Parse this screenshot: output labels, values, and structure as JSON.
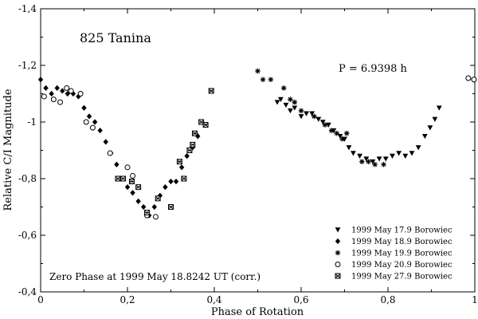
{
  "chart_data": {
    "type": "scatter",
    "object_name": "825 Tanina",
    "period_label": "P = 6.9398 h",
    "zero_phase_note": "Zero Phase at 1999 May 18.8242 UT (corr.)",
    "xlabel": "Phase of Rotation",
    "ylabel": "Relative C/I Magnitude",
    "xlim": [
      0,
      1
    ],
    "ylim": [
      -1.4,
      -0.4
    ],
    "y_inverted": true,
    "x_ticks": [
      {
        "value": 0,
        "label": "0"
      },
      {
        "value": 0.2,
        "label": "0,2"
      },
      {
        "value": 0.4,
        "label": "0,4"
      },
      {
        "value": 0.6,
        "label": "0,6"
      },
      {
        "value": 0.8,
        "label": "0,8"
      },
      {
        "value": 1.0,
        "label": "1"
      }
    ],
    "y_ticks": [
      {
        "value": -1.4,
        "label": "-1,4"
      },
      {
        "value": -1.2,
        "label": "-1,2"
      },
      {
        "value": -1.0,
        "label": "-1"
      },
      {
        "value": -0.8,
        "label": "-0,8"
      },
      {
        "value": -0.6,
        "label": "-0,6"
      },
      {
        "value": -0.4,
        "label": "-0,4"
      }
    ],
    "legend_position": "bottom-right",
    "series": [
      {
        "name": "1999 May 17.9 Borowiec",
        "marker": "triangle-down",
        "points": [
          [
            0.545,
            -1.07
          ],
          [
            0.553,
            -1.08
          ],
          [
            0.565,
            -1.06
          ],
          [
            0.575,
            -1.04
          ],
          [
            0.585,
            -1.05
          ],
          [
            0.6,
            -1.02
          ],
          [
            0.612,
            -1.03
          ],
          [
            0.625,
            -1.03
          ],
          [
            0.64,
            -1.01
          ],
          [
            0.65,
            -1.0
          ],
          [
            0.663,
            -0.99
          ],
          [
            0.675,
            -0.97
          ],
          [
            0.69,
            -0.95
          ],
          [
            0.7,
            -0.94
          ],
          [
            0.71,
            -0.91
          ],
          [
            0.72,
            -0.89
          ],
          [
            0.735,
            -0.88
          ],
          [
            0.75,
            -0.87
          ],
          [
            0.765,
            -0.86
          ],
          [
            0.78,
            -0.87
          ],
          [
            0.795,
            -0.87
          ],
          [
            0.81,
            -0.88
          ],
          [
            0.825,
            -0.89
          ],
          [
            0.84,
            -0.88
          ],
          [
            0.855,
            -0.89
          ],
          [
            0.87,
            -0.91
          ],
          [
            0.885,
            -0.95
          ],
          [
            0.897,
            -0.98
          ],
          [
            0.908,
            -1.01
          ],
          [
            0.918,
            -1.05
          ]
        ]
      },
      {
        "name": "1999 May 18.9 Borowiec",
        "marker": "diamond",
        "points": [
          [
            0.0,
            -1.15
          ],
          [
            0.012,
            -1.12
          ],
          [
            0.025,
            -1.1
          ],
          [
            0.038,
            -1.12
          ],
          [
            0.05,
            -1.11
          ],
          [
            0.062,
            -1.1
          ],
          [
            0.075,
            -1.1
          ],
          [
            0.087,
            -1.09
          ],
          [
            0.1,
            -1.05
          ],
          [
            0.112,
            -1.02
          ],
          [
            0.125,
            -1.0
          ],
          [
            0.137,
            -0.97
          ],
          [
            0.15,
            -0.93
          ],
          [
            0.162,
            -0.89
          ],
          [
            0.175,
            -0.85
          ],
          [
            0.187,
            -0.8
          ],
          [
            0.2,
            -0.77
          ],
          [
            0.212,
            -0.75
          ],
          [
            0.225,
            -0.72
          ],
          [
            0.237,
            -0.7
          ],
          [
            0.25,
            -0.67
          ],
          [
            0.262,
            -0.7
          ],
          [
            0.275,
            -0.74
          ],
          [
            0.287,
            -0.77
          ],
          [
            0.3,
            -0.79
          ],
          [
            0.312,
            -0.79
          ],
          [
            0.325,
            -0.84
          ],
          [
            0.337,
            -0.88
          ],
          [
            0.35,
            -0.91
          ],
          [
            0.362,
            -0.95
          ]
        ]
      },
      {
        "name": "1999 May 19.9 Borowiec",
        "marker": "star",
        "points": [
          [
            0.5,
            -1.18
          ],
          [
            0.512,
            -1.15
          ],
          [
            0.53,
            -1.15
          ],
          [
            0.56,
            -1.12
          ],
          [
            0.575,
            -1.08
          ],
          [
            0.585,
            -1.07
          ],
          [
            0.6,
            -1.04
          ],
          [
            0.63,
            -1.02
          ],
          [
            0.655,
            -0.99
          ],
          [
            0.67,
            -0.97
          ],
          [
            0.682,
            -0.96
          ],
          [
            0.695,
            -0.94
          ],
          [
            0.705,
            -0.96
          ],
          [
            0.74,
            -0.86
          ],
          [
            0.755,
            -0.86
          ],
          [
            0.77,
            -0.85
          ],
          [
            0.79,
            -0.85
          ]
        ]
      },
      {
        "name": "1999 May 20.9 Borowiec",
        "marker": "circle-open",
        "points": [
          [
            0.008,
            -1.09
          ],
          [
            0.03,
            -1.08
          ],
          [
            0.045,
            -1.07
          ],
          [
            0.06,
            -1.12
          ],
          [
            0.07,
            -1.11
          ],
          [
            0.092,
            -1.1
          ],
          [
            0.105,
            -1.0
          ],
          [
            0.12,
            -0.98
          ],
          [
            0.16,
            -0.89
          ],
          [
            0.18,
            -0.8
          ],
          [
            0.2,
            -0.84
          ],
          [
            0.212,
            -0.81
          ],
          [
            0.245,
            -0.67
          ],
          [
            0.265,
            -0.665
          ],
          [
            0.985,
            -1.155
          ],
          [
            0.998,
            -1.15
          ]
        ]
      },
      {
        "name": "1999 May 27.9 Borowiec",
        "marker": "square-hatched",
        "points": [
          [
            0.178,
            -0.8
          ],
          [
            0.19,
            -0.8
          ],
          [
            0.21,
            -0.79
          ],
          [
            0.225,
            -0.77
          ],
          [
            0.245,
            -0.68
          ],
          [
            0.27,
            -0.73
          ],
          [
            0.3,
            -0.7
          ],
          [
            0.32,
            -0.86
          ],
          [
            0.33,
            -0.8
          ],
          [
            0.343,
            -0.9
          ],
          [
            0.35,
            -0.92
          ],
          [
            0.355,
            -0.96
          ],
          [
            0.37,
            -1.0
          ],
          [
            0.38,
            -0.99
          ],
          [
            0.393,
            -1.11
          ]
        ]
      }
    ]
  }
}
